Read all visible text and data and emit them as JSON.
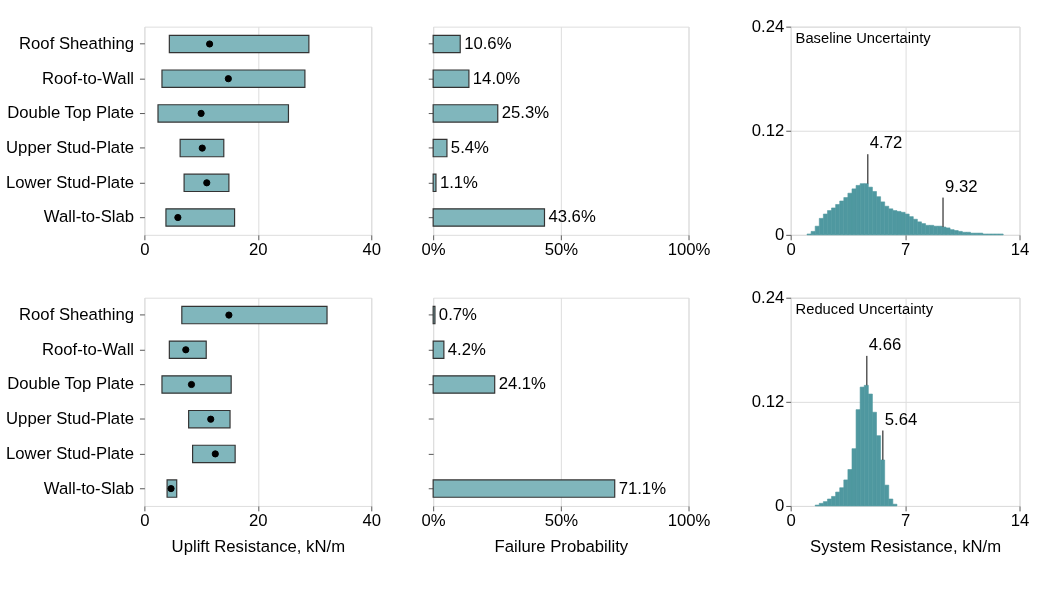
{
  "chart_data": [
    {
      "type": "bar",
      "orientation": "horizontal",
      "categories": [
        "Roof Sheathing",
        "Roof-to-Wall",
        "Double Top Plate",
        "Upper Stud-Plate",
        "Lower Stud-Plate",
        "Wall-to-Slab"
      ],
      "xlim": [
        0,
        40
      ],
      "xticks": [
        0,
        20,
        40
      ],
      "grid": true,
      "series": [
        {
          "type": "bar",
          "color": "#80b6bc",
          "base": [
            4.4,
            3.1,
            2.4,
            6.3,
            7.0,
            3.8
          ],
          "values": [
            24.6,
            25.2,
            23.0,
            7.7,
            7.9,
            12.1
          ]
        },
        {
          "type": "scatter",
          "color": "#000000",
          "marker": "circle",
          "values": [
            11.5,
            14.8,
            10.0,
            10.2,
            11.0,
            5.9
          ]
        }
      ]
    },
    {
      "type": "bar",
      "orientation": "horizontal",
      "categories": [
        null,
        null,
        null,
        null,
        null,
        null
      ],
      "tick_labels": "x",
      "xlim": [
        0,
        100
      ],
      "xticks": [
        {
          "value": 0,
          "label": "0%"
        },
        {
          "value": 50,
          "label": "50%"
        },
        {
          "value": 100,
          "label": "100%"
        }
      ],
      "grid": true,
      "series": [
        {
          "type": "bar",
          "color": "#80b6bc",
          "values": [
            10.6,
            14.0,
            25.3,
            5.4,
            1.1,
            43.6
          ],
          "value_labels": [
            "10.6%",
            "14.0%",
            "25.3%",
            "5.4%",
            "1.1%",
            "43.6%"
          ]
        }
      ]
    },
    {
      "type": "histogram",
      "color": "#4f98a0",
      "xlim": [
        0,
        14
      ],
      "xticks": [
        0,
        7,
        14
      ],
      "ylim": [
        0,
        0.24
      ],
      "yticks": [
        0,
        0.12,
        0.24
      ],
      "grid": true,
      "bins": [
        0,
        0.25,
        0.5,
        0.75,
        1,
        1.25,
        1.5,
        1.75,
        2,
        2.25,
        2.5,
        2.75,
        3,
        3.25,
        3.5,
        3.75,
        4,
        4.25,
        4.5,
        4.75,
        5,
        5.25,
        5.5,
        5.75,
        6,
        6.25,
        6.5,
        6.75,
        7,
        7.25,
        7.5,
        7.75,
        8,
        8.25,
        8.5,
        8.75,
        9,
        9.25,
        9.5,
        9.75,
        10,
        10.25,
        10.5,
        10.75,
        11,
        11.25,
        11.5,
        11.75,
        12,
        12.25,
        12.5,
        12.75,
        13,
        13.25,
        13.5,
        13.75,
        14
      ],
      "values": [
        0,
        0,
        0,
        0,
        0.001,
        0.004,
        0.01,
        0.019,
        0.024,
        0.028,
        0.031,
        0.035,
        0.039,
        0.043,
        0.048,
        0.053,
        0.057,
        0.059,
        0.059,
        0.055,
        0.05,
        0.044,
        0.038,
        0.033,
        0.03,
        0.028,
        0.027,
        0.026,
        0.024,
        0.021,
        0.018,
        0.015,
        0.013,
        0.011,
        0.011,
        0.01,
        0.01,
        0.009,
        0.008,
        0.006,
        0.005,
        0.004,
        0.003,
        0.003,
        0.002,
        0.002,
        0.002,
        0.001,
        0.001,
        0.001,
        0.001,
        0.001,
        0,
        0,
        0,
        0
      ],
      "annotations": [
        "Baseline Uncertainty",
        {
          "text": "4.72",
          "x": 4.72,
          "y": 0.059
        },
        {
          "text": "9.32",
          "x": 9.32,
          "y": 0.009
        }
      ]
    },
    {
      "type": "bar",
      "orientation": "horizontal",
      "categories": [
        "Roof Sheathing",
        "Roof-to-Wall",
        "Double Top Plate",
        "Upper Stud-Plate",
        "Lower Stud-Plate",
        "Wall-to-Slab"
      ],
      "xlabel": "Uplift Resistance, kN/m",
      "xlim": [
        0,
        40
      ],
      "xticks": [
        0,
        20,
        40
      ],
      "grid": true,
      "series": [
        {
          "type": "bar",
          "color": "#80b6bc",
          "base": [
            6.6,
            4.4,
            3.1,
            7.8,
            8.5,
            4.0
          ],
          "values": [
            25.6,
            6.5,
            12.2,
            7.3,
            7.5,
            1.7
          ]
        },
        {
          "type": "scatter",
          "color": "#000000",
          "marker": "circle",
          "values": [
            14.9,
            7.3,
            8.3,
            11.7,
            12.5,
            4.7
          ]
        }
      ]
    },
    {
      "type": "bar",
      "orientation": "horizontal",
      "categories": [
        null,
        null,
        null,
        null,
        null,
        null
      ],
      "tick_labels": "x",
      "xlabel": "Failure Probability",
      "xlim": [
        0,
        100
      ],
      "xticks": [
        {
          "value": 0,
          "label": "0%"
        },
        {
          "value": 50,
          "label": "50%"
        },
        {
          "value": 100,
          "label": "100%"
        }
      ],
      "grid": true,
      "series": [
        {
          "type": "bar",
          "color": "#80b6bc",
          "values": [
            0.7,
            4.2,
            24.1,
            0,
            0,
            71.1
          ],
          "value_labels": [
            "0.7%",
            "4.2%",
            "24.1%",
            null,
            null,
            "71.1%"
          ]
        }
      ]
    },
    {
      "type": "histogram",
      "color": "#4f98a0",
      "xlabel": "System Resistance, kN/m",
      "xlim": [
        0,
        14
      ],
      "xticks": [
        0,
        7,
        14
      ],
      "ylim": [
        0,
        0.24
      ],
      "yticks": [
        0,
        0.12,
        0.24
      ],
      "grid": true,
      "bins": [
        0,
        0.25,
        0.5,
        0.75,
        1,
        1.25,
        1.5,
        1.75,
        2,
        2.25,
        2.5,
        2.75,
        3,
        3.25,
        3.5,
        3.75,
        4,
        4.25,
        4.5,
        4.75,
        5,
        5.25,
        5.5,
        5.75,
        6,
        6.25,
        6.5,
        6.75,
        7,
        7.25,
        7.5,
        7.75,
        8,
        8.25,
        8.5,
        8.75,
        9,
        9.25,
        9.5,
        9.75,
        10,
        10.25,
        10.5,
        10.75,
        11,
        11.25,
        11.5,
        11.75,
        12,
        12.25,
        12.5,
        12.75,
        13,
        13.25,
        13.5,
        13.75,
        14
      ],
      "values": [
        0,
        0,
        0,
        0,
        0,
        0,
        0.001,
        0.003,
        0.005,
        0.008,
        0.011,
        0.016,
        0.021,
        0.03,
        0.042,
        0.066,
        0.111,
        0.137,
        0.139,
        0.129,
        0.108,
        0.081,
        0.053,
        0.024,
        0.008,
        0.002,
        0,
        0,
        0,
        0,
        0,
        0,
        0,
        0,
        0,
        0,
        0,
        0,
        0,
        0,
        0,
        0,
        0,
        0,
        0,
        0,
        0,
        0,
        0,
        0,
        0,
        0,
        0,
        0,
        0,
        0
      ],
      "annotations": [
        "Reduced Uncertainty",
        {
          "text": "4.66",
          "x": 4.66,
          "y": 0.139
        },
        {
          "text": "5.64",
          "x": 5.64,
          "y": 0.053
        }
      ]
    }
  ]
}
